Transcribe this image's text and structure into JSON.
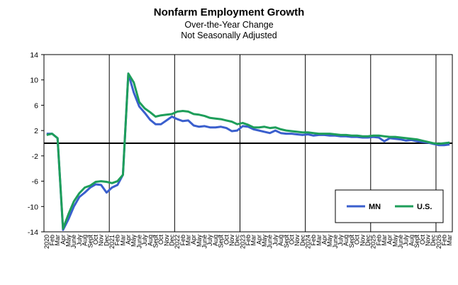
{
  "chart_data": {
    "type": "line",
    "title": "Nonfarm Employment Growth",
    "subtitle1": "Over-the-Year Change",
    "subtitle2": "Not Seasonally Adjusted",
    "xlabel": "",
    "ylabel": "",
    "ylim": [
      -14,
      14
    ],
    "yticks": [
      14,
      10,
      6,
      2,
      -2,
      -6,
      -10,
      -14
    ],
    "grid": "vertical lines at each January",
    "legend_position": "bottom-right",
    "x": [
      "2020",
      "Feb",
      "Mar",
      "Apr",
      "May",
      "June",
      "July",
      "Aug",
      "Sept",
      "Oct",
      "Nov",
      "Dec",
      "2021",
      "Feb",
      "Mar",
      "Apr",
      "May",
      "June",
      "July",
      "Aug",
      "Sept",
      "Oct",
      "Nov",
      "Dec",
      "2022",
      "Feb",
      "Mar",
      "Apr",
      "May",
      "June",
      "July",
      "Aug",
      "Sept",
      "Oct",
      "Nov",
      "Dec",
      "2023",
      "Feb",
      "Mar",
      "Apr",
      "May",
      "June",
      "July",
      "Aug",
      "Sept",
      "Oct",
      "Nov",
      "Dec",
      "2024",
      "Feb",
      "Mar",
      "Apr",
      "May",
      "June",
      "July",
      "Aug",
      "Sept",
      "Oct",
      "Nov",
      "Dec",
      "2025",
      "Feb",
      "Mar",
      "Apr",
      "May",
      "June",
      "July",
      "Aug",
      "Sept",
      "Oct",
      "Nov",
      "Dec",
      "2026",
      "Feb",
      "Mar"
    ],
    "series": [
      {
        "name": "MN",
        "color": "#3a5fcd",
        "values": [
          1.5,
          1.5,
          0.8,
          -13.7,
          -12.0,
          -10.0,
          -8.5,
          -7.8,
          -7.0,
          -6.5,
          -6.6,
          -7.8,
          -7.0,
          -6.6,
          -5.0,
          11.0,
          8.0,
          5.8,
          4.8,
          3.7,
          3.0,
          3.0,
          3.6,
          4.2,
          3.8,
          3.5,
          3.6,
          2.8,
          2.6,
          2.7,
          2.5,
          2.5,
          2.6,
          2.4,
          1.9,
          2.0,
          2.7,
          2.6,
          2.2,
          2.0,
          1.8,
          1.6,
          2.0,
          1.6,
          1.5,
          1.5,
          1.4,
          1.3,
          1.4,
          1.2,
          1.3,
          1.3,
          1.2,
          1.2,
          1.1,
          1.1,
          1.0,
          1.0,
          0.9,
          0.9,
          1.0,
          0.9,
          0.3,
          0.8,
          0.7,
          0.6,
          0.4,
          0.5,
          0.3,
          0.2,
          0.1,
          -0.1,
          -0.3,
          -0.3,
          -0.2
        ]
      },
      {
        "name": "U.S.",
        "color": "#1e9e5a",
        "values": [
          1.3,
          1.5,
          0.8,
          -13.5,
          -11.2,
          -9.2,
          -7.9,
          -7.0,
          -6.7,
          -6.1,
          -6.0,
          -6.1,
          -6.3,
          -6.0,
          -5.0,
          11.0,
          9.6,
          6.5,
          5.5,
          4.9,
          4.2,
          4.4,
          4.5,
          4.6,
          5.0,
          5.1,
          5.0,
          4.6,
          4.5,
          4.3,
          4.0,
          3.9,
          3.8,
          3.6,
          3.4,
          3.0,
          3.2,
          2.9,
          2.5,
          2.5,
          2.6,
          2.4,
          2.5,
          2.2,
          2.0,
          1.9,
          1.8,
          1.7,
          1.7,
          1.6,
          1.5,
          1.5,
          1.5,
          1.4,
          1.3,
          1.3,
          1.2,
          1.2,
          1.1,
          1.1,
          1.2,
          1.2,
          1.1,
          1.0,
          1.0,
          0.9,
          0.8,
          0.7,
          0.6,
          0.4,
          0.2,
          0.0,
          -0.1,
          0.0,
          0.1
        ]
      }
    ]
  }
}
